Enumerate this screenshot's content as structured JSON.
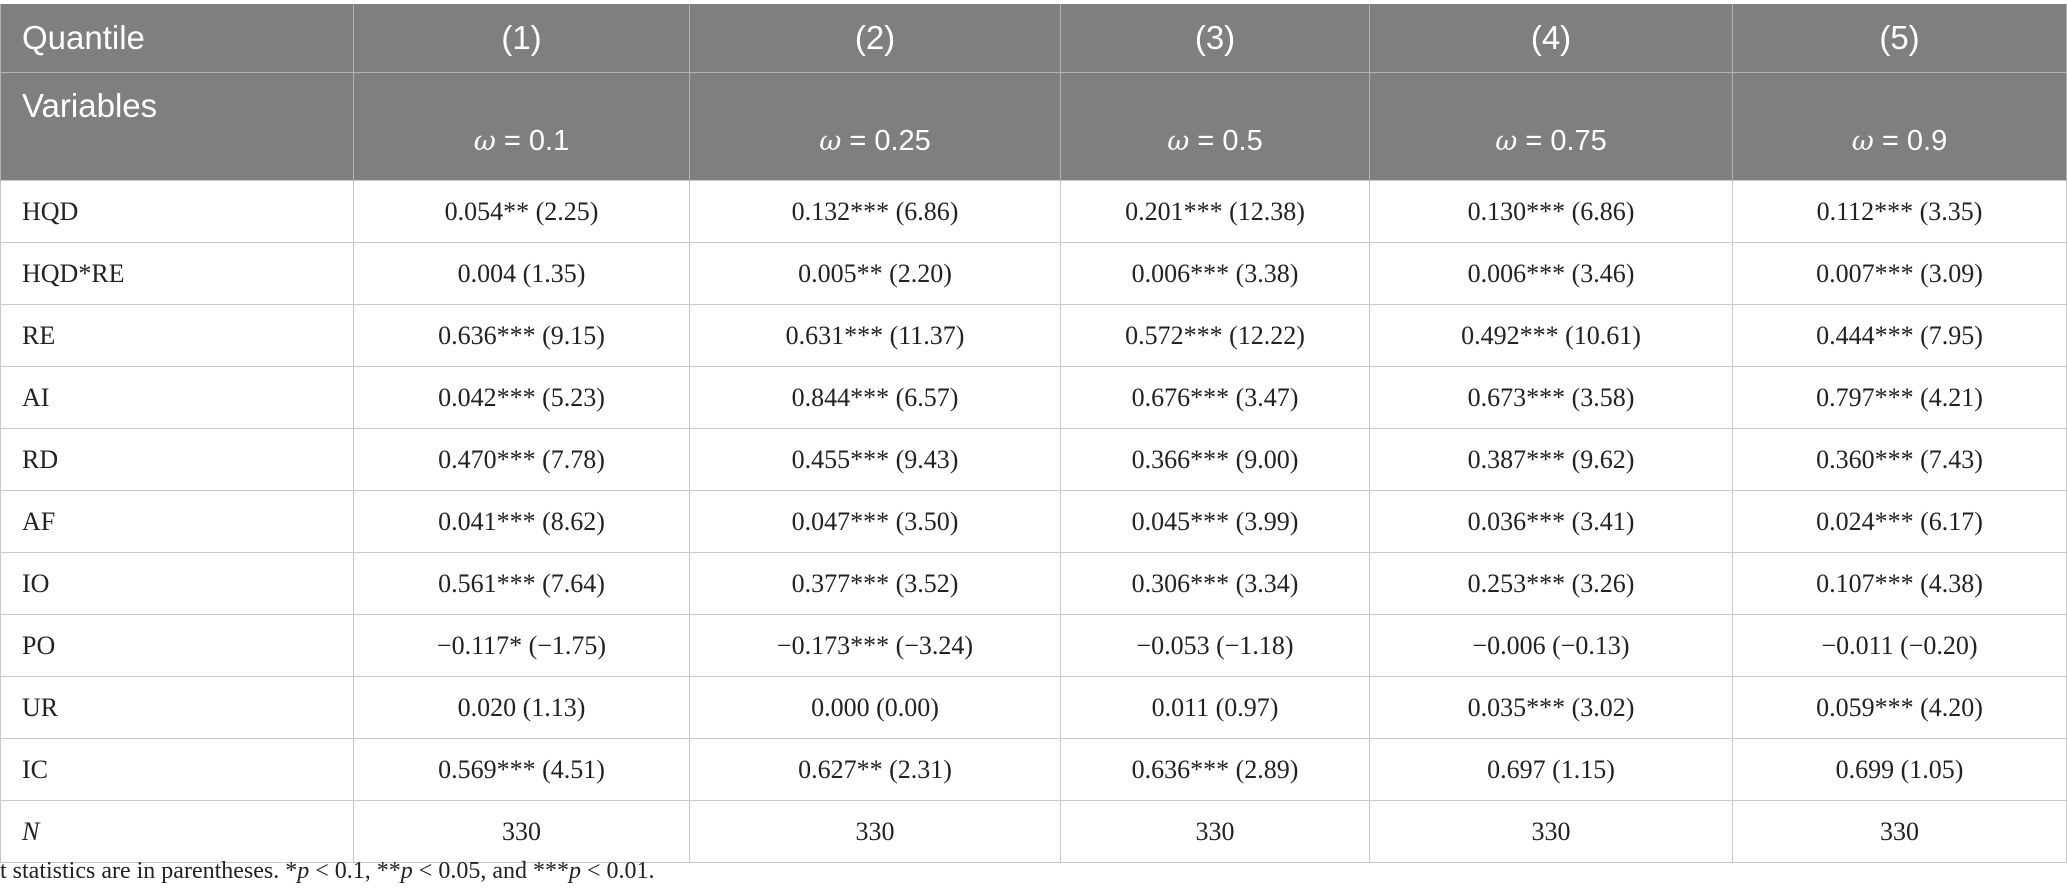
{
  "table": {
    "header_row1": {
      "stub": "Quantile",
      "columns": [
        "(1)",
        "(2)",
        "(3)",
        "(4)",
        "(5)"
      ]
    },
    "header_row2": {
      "stub": "Variables",
      "omega_symbol": "ω",
      "quantiles": [
        "= 0.1",
        "= 0.25",
        "= 0.5",
        "= 0.75",
        "= 0.9"
      ]
    },
    "rows": [
      {
        "variable": "HQD",
        "values": [
          "0.054** (2.25)",
          "0.132*** (6.86)",
          "0.201*** (12.38)",
          "0.130*** (6.86)",
          "0.112*** (3.35)"
        ]
      },
      {
        "variable": "HQD*RE",
        "values": [
          "0.004 (1.35)",
          "0.005** (2.20)",
          "0.006*** (3.38)",
          "0.006*** (3.46)",
          "0.007*** (3.09)"
        ]
      },
      {
        "variable": "RE",
        "values": [
          "0.636*** (9.15)",
          "0.631*** (11.37)",
          "0.572*** (12.22)",
          "0.492*** (10.61)",
          "0.444*** (7.95)"
        ]
      },
      {
        "variable": "AI",
        "values": [
          "0.042*** (5.23)",
          "0.844*** (6.57)",
          "0.676*** (3.47)",
          "0.673*** (3.58)",
          "0.797*** (4.21)"
        ]
      },
      {
        "variable": "RD",
        "values": [
          "0.470*** (7.78)",
          "0.455*** (9.43)",
          "0.366*** (9.00)",
          "0.387*** (9.62)",
          "0.360*** (7.43)"
        ]
      },
      {
        "variable": "AF",
        "values": [
          "0.041*** (8.62)",
          "0.047*** (3.50)",
          "0.045*** (3.99)",
          "0.036*** (3.41)",
          "0.024*** (6.17)"
        ]
      },
      {
        "variable": "IO",
        "values": [
          "0.561*** (7.64)",
          "0.377*** (3.52)",
          "0.306*** (3.34)",
          "0.253*** (3.26)",
          "0.107*** (4.38)"
        ]
      },
      {
        "variable": "PO",
        "values": [
          "−0.117* (−1.75)",
          "−0.173*** (−3.24)",
          "−0.053 (−1.18)",
          "−0.006 (−0.13)",
          "−0.011 (−0.20)"
        ]
      },
      {
        "variable": "UR",
        "values": [
          "0.020 (1.13)",
          "0.000 (0.00)",
          "0.011 (0.97)",
          "0.035*** (3.02)",
          "0.059*** (4.20)"
        ]
      },
      {
        "variable": "IC",
        "values": [
          "0.569*** (4.51)",
          "0.627** (2.31)",
          "0.636*** (2.89)",
          "0.697 (1.15)",
          "0.699 (1.05)"
        ]
      },
      {
        "variable": "N",
        "italic": true,
        "values": [
          "330",
          "330",
          "330",
          "330",
          "330"
        ]
      }
    ]
  },
  "note": {
    "part1": "t statistics are in parentheses. *",
    "p1": "p",
    "part2": " < 0.1, **",
    "p2": "p",
    "part3": " < 0.05, and ***",
    "p3": "p",
    "part4": " < 0.01."
  },
  "colors": {
    "header_bg": "#7f7f7f",
    "header_text": "#ffffff",
    "grid": "#c8c8c8",
    "body_text": "#222222"
  }
}
